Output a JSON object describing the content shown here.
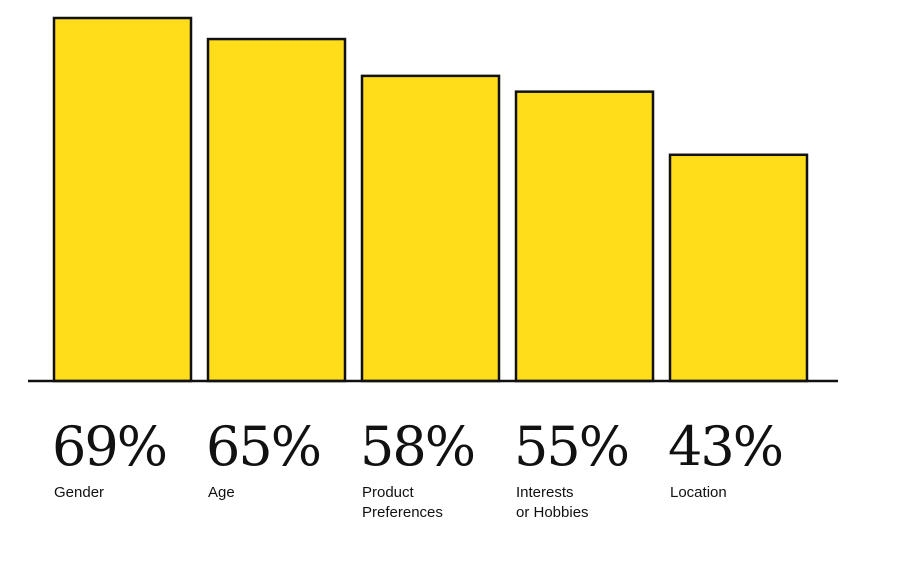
{
  "chart_data": {
    "type": "bar",
    "categories": [
      [
        "Gender"
      ],
      [
        "Age"
      ],
      [
        "Product",
        "Preferences"
      ],
      [
        "Interests",
        "or Hobbies"
      ],
      [
        "Location"
      ]
    ],
    "values": [
      69,
      65,
      58,
      55,
      43
    ],
    "value_labels": [
      "69%",
      "65%",
      "58%",
      "55%",
      "43%"
    ],
    "ylim": [
      0,
      69
    ],
    "grid": false,
    "legend": "none",
    "title": "",
    "xlabel": "",
    "ylabel": ""
  },
  "colors": {
    "bar_fill": "#FFDD1A",
    "bar_stroke": "#111111",
    "background": "#FFFFFF"
  }
}
